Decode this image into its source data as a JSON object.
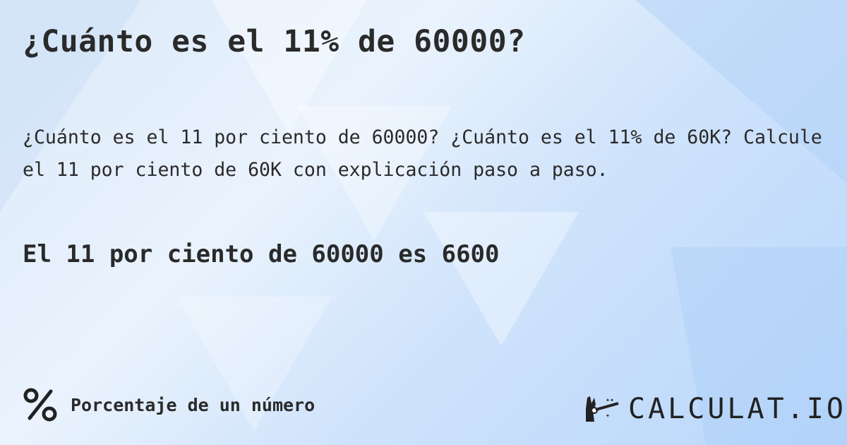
{
  "title": "¿Cuánto es el 11% de 60000?",
  "description": "¿Cuánto es el 11 por ciento de 60000? ¿Cuánto es el 11% de 60K? Calcule el 11 por ciento de 60K con explicación paso a paso.",
  "answer": "El 11 por ciento de 60000 es 6600",
  "category": {
    "icon": "percent-icon",
    "label": "Porcentaje de un número"
  },
  "logo": {
    "icon": "magic-wand-hand-icon",
    "text": "CALCULAT.IO"
  }
}
